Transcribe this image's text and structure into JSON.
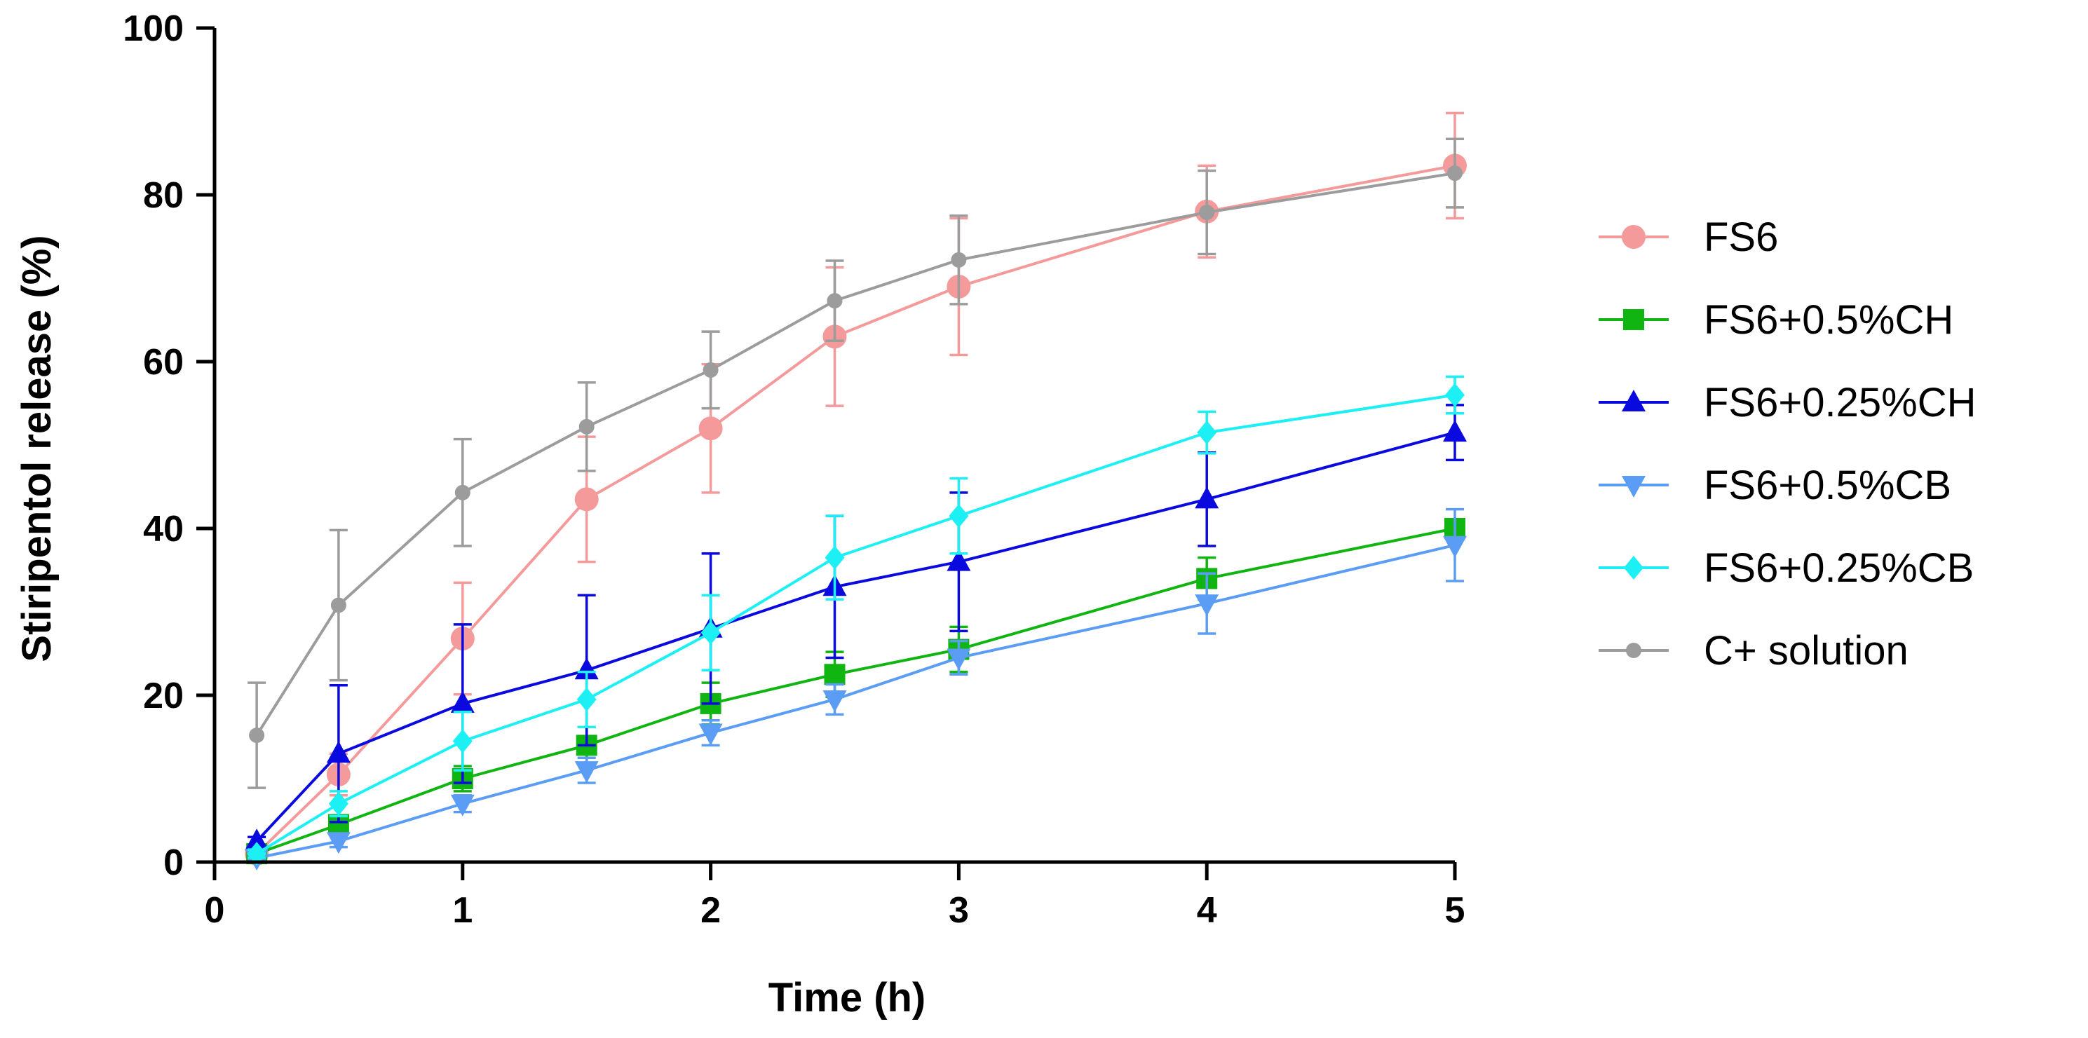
{
  "chart_data": {
    "type": "line",
    "title": "",
    "xlabel": "Time (h)",
    "ylabel": "Stiripentol release (%)",
    "xlim": [
      0,
      5
    ],
    "ylim": [
      0,
      100
    ],
    "xticks": [
      0,
      1,
      2,
      3,
      4,
      5
    ],
    "yticks": [
      0,
      20,
      40,
      60,
      80,
      100
    ],
    "grid": false,
    "legend_position": "right",
    "x": [
      0.17,
      0.5,
      1,
      1.5,
      2,
      2.5,
      3,
      4,
      5
    ],
    "series": [
      {
        "name": "FS6",
        "color": "#f49a9a",
        "marker": "circle",
        "values": [
          1,
          10.5,
          26.8,
          43.5,
          52,
          63,
          69,
          78,
          83.5
        ],
        "errors": [
          0.5,
          2.5,
          6.7,
          7.5,
          7.7,
          8.3,
          8.2,
          5.5,
          6.3
        ]
      },
      {
        "name": "FS6+0.5%CH",
        "color": "#11b511",
        "marker": "square",
        "values": [
          1,
          4.5,
          10,
          14,
          19,
          22.5,
          25.5,
          34,
          40
        ],
        "errors": [
          0.5,
          1,
          1.5,
          2.2,
          2.5,
          2.7,
          2.7,
          2.5,
          1
        ]
      },
      {
        "name": "FS6+0.25%CH",
        "color": "#0a0adf",
        "marker": "triangle-up",
        "values": [
          2.5,
          13,
          19,
          23,
          28,
          33,
          36,
          43.5,
          51.5
        ],
        "errors": [
          0.5,
          8.2,
          9.5,
          9,
          9,
          8.5,
          8.3,
          5.6,
          3.3
        ]
      },
      {
        "name": "FS6+0.5%CB",
        "color": "#5b9df5",
        "marker": "triangle-down",
        "values": [
          0.5,
          2.5,
          7,
          11,
          15.5,
          19.5,
          24.5,
          31,
          38
        ],
        "errors": [
          0.3,
          0.7,
          1,
          1.5,
          1.5,
          1.8,
          2,
          3.6,
          4.3
        ]
      },
      {
        "name": "FS6+0.25%CB",
        "color": "#1cf0f4",
        "marker": "diamond",
        "values": [
          1,
          7,
          14.5,
          19.5,
          27.5,
          36.5,
          41.5,
          51.5,
          56
        ],
        "errors": [
          0.5,
          1.5,
          3.5,
          3.3,
          4.5,
          5,
          4.5,
          2.5,
          2.2
        ]
      },
      {
        "name": "C+ solution",
        "color": "#9c9c9c",
        "marker": "circle-small",
        "values": [
          15.2,
          30.8,
          44.3,
          52.2,
          59,
          67.3,
          72.2,
          77.9,
          82.6
        ],
        "errors": [
          6.3,
          9,
          6.4,
          5.3,
          4.6,
          4.8,
          5.3,
          5,
          4.1
        ]
      }
    ]
  }
}
